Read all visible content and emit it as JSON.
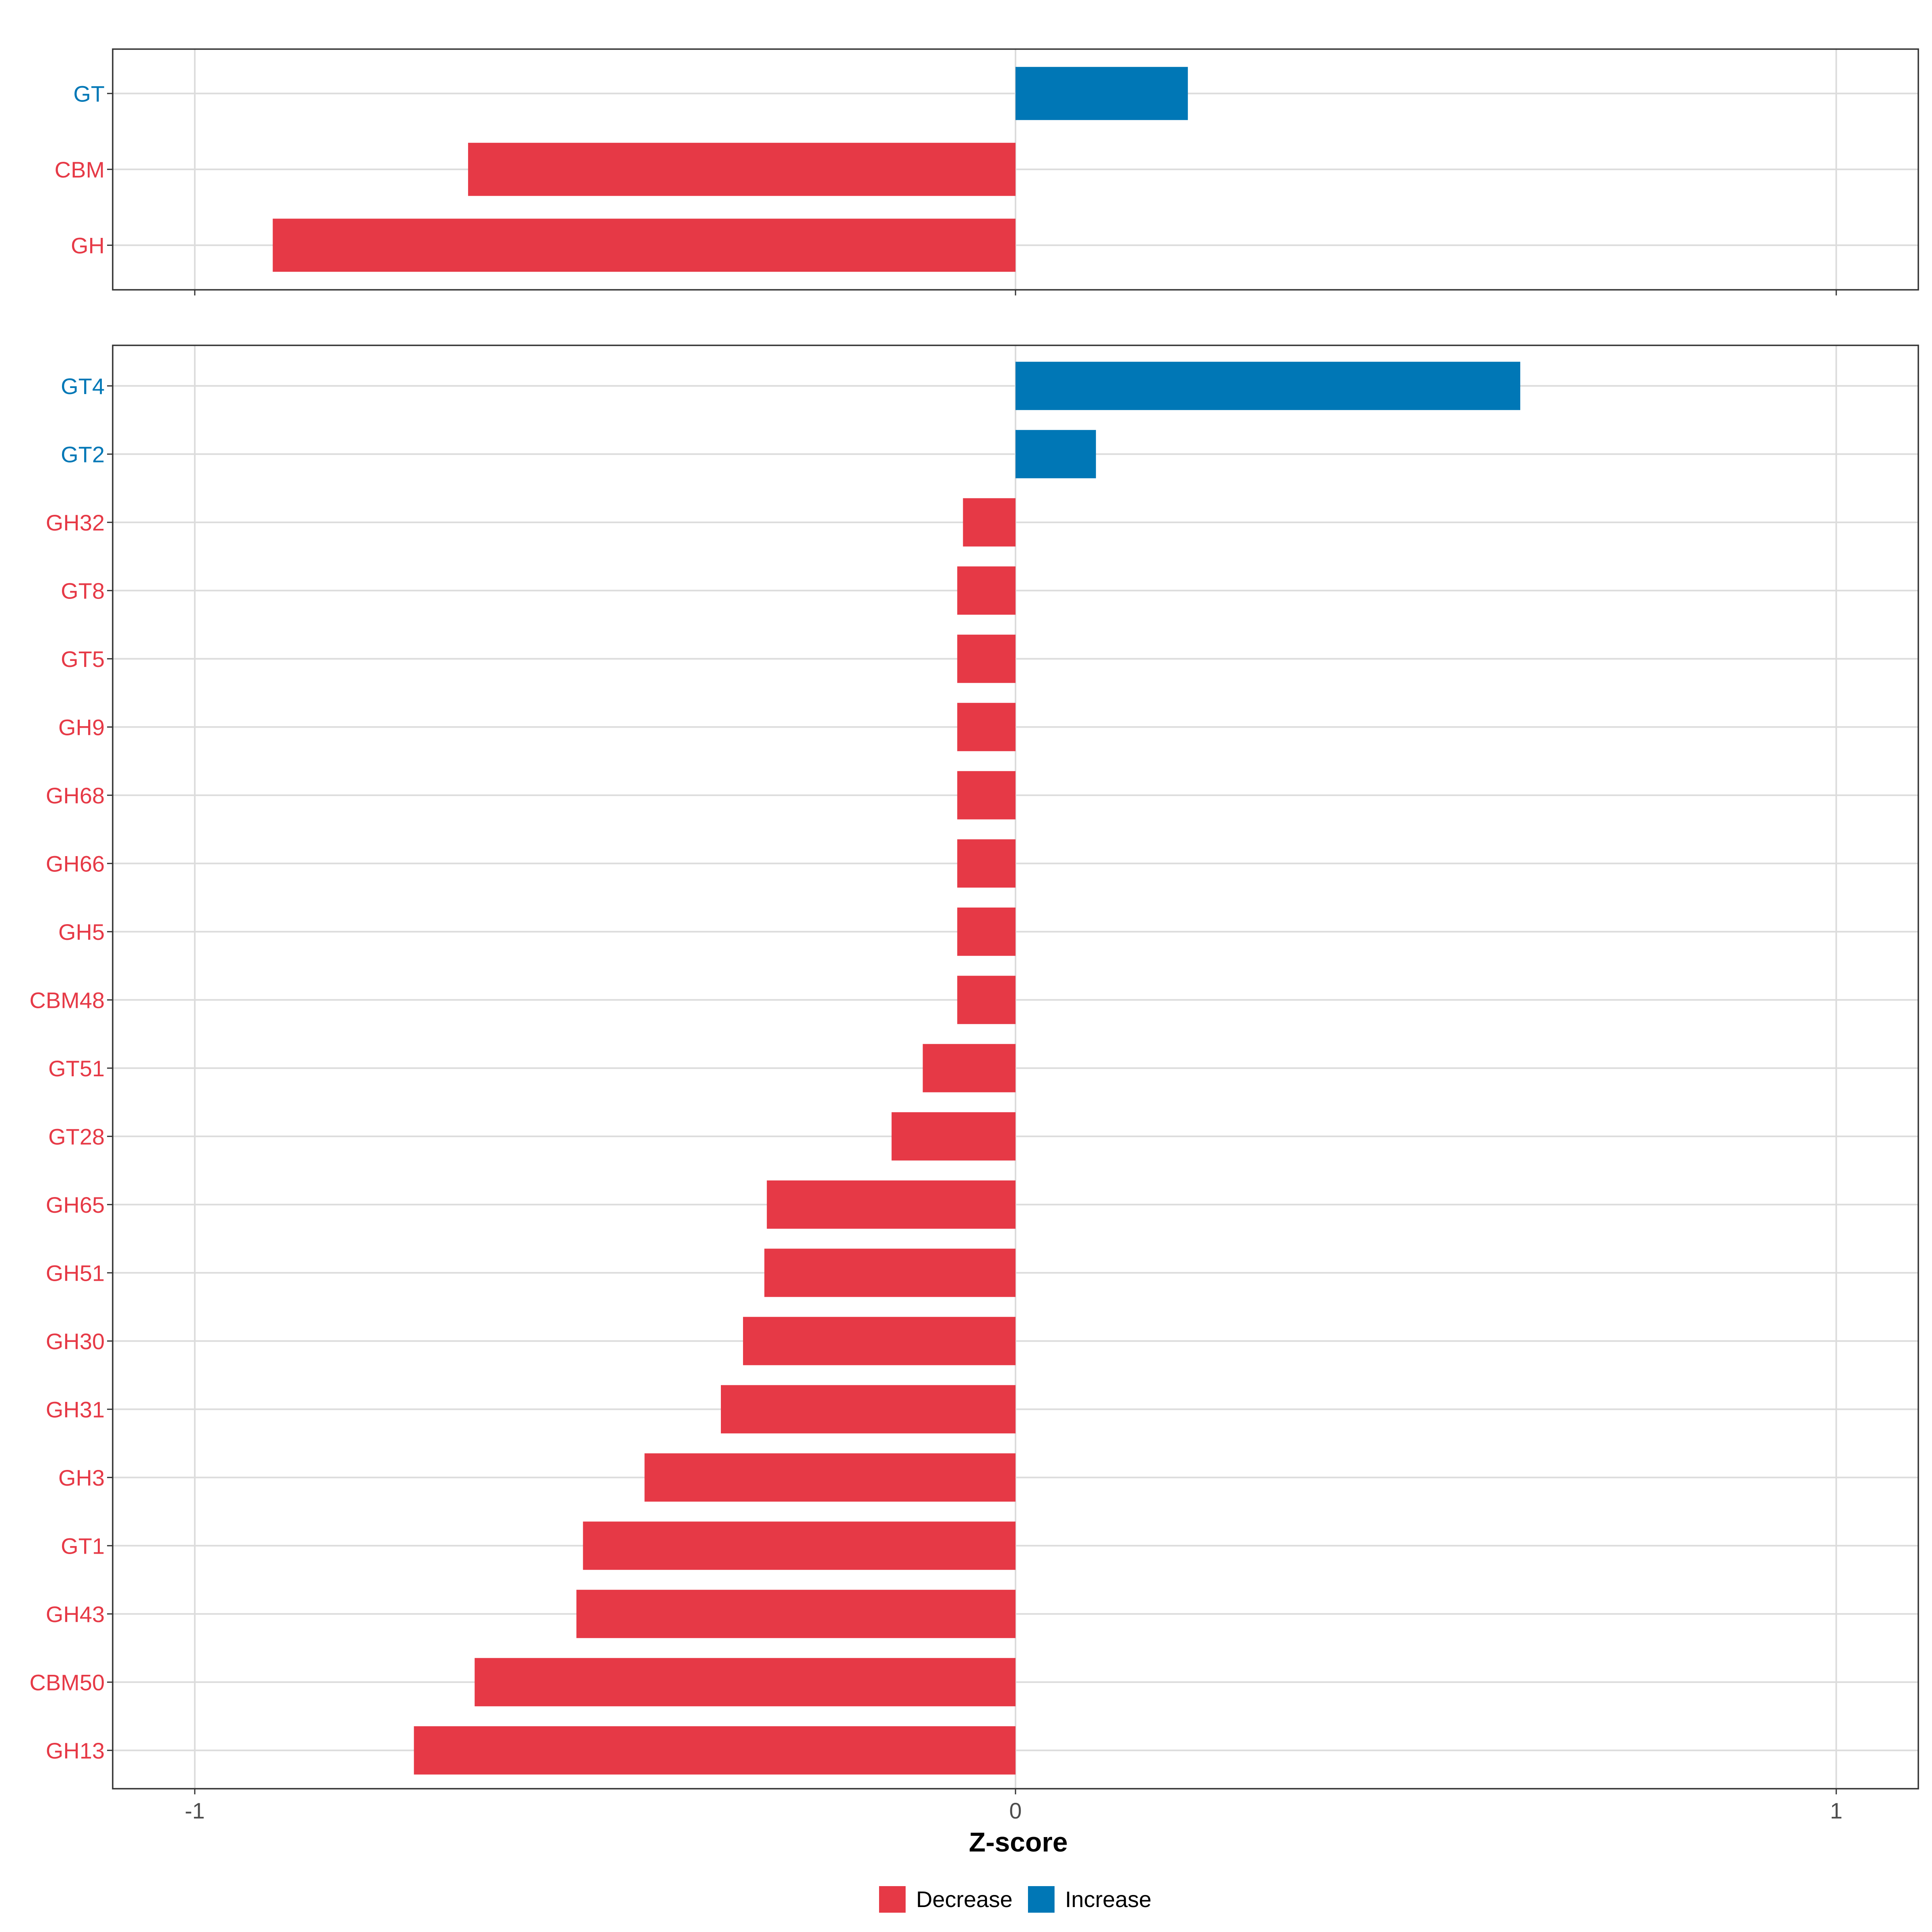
{
  "chart_data": {
    "type": "bar",
    "orientation": "horizontal",
    "xlabel": "Z-score",
    "xlim": [
      -1.1,
      1.1
    ],
    "xticks": [
      -1,
      0,
      1
    ],
    "xtick_labels": [
      "-1",
      "0",
      "1"
    ],
    "colors": {
      "Decrease": "#e63946",
      "Increase": "#0077b6"
    },
    "legend": {
      "placement": "bottom-center",
      "entries": [
        {
          "name": "Decrease",
          "color": "#e63946"
        },
        {
          "name": "Increase",
          "color": "#0077b6"
        }
      ]
    },
    "panels": [
      {
        "name": "top",
        "categories": [
          "GT",
          "CBM",
          "GH"
        ],
        "values": [
          0.21,
          -0.667,
          -0.905
        ],
        "direction": [
          "Increase",
          "Decrease",
          "Decrease"
        ]
      },
      {
        "name": "bottom",
        "categories": [
          "GT4",
          "GT2",
          "GH32",
          "GT8",
          "GT5",
          "GH9",
          "GH68",
          "GH66",
          "GH5",
          "CBM48",
          "GT51",
          "GT28",
          "GH65",
          "GH51",
          "GH30",
          "GH31",
          "GH3",
          "GT1",
          "GH43",
          "CBM50",
          "GH13"
        ],
        "values": [
          0.615,
          0.098,
          -0.064,
          -0.071,
          -0.071,
          -0.071,
          -0.071,
          -0.071,
          -0.071,
          -0.071,
          -0.113,
          -0.151,
          -0.303,
          -0.306,
          -0.332,
          -0.359,
          -0.452,
          -0.527,
          -0.535,
          -0.659,
          -0.733
        ],
        "direction": [
          "Increase",
          "Increase",
          "Decrease",
          "Decrease",
          "Decrease",
          "Decrease",
          "Decrease",
          "Decrease",
          "Decrease",
          "Decrease",
          "Decrease",
          "Decrease",
          "Decrease",
          "Decrease",
          "Decrease",
          "Decrease",
          "Decrease",
          "Decrease",
          "Decrease",
          "Decrease",
          "Decrease"
        ]
      }
    ]
  }
}
